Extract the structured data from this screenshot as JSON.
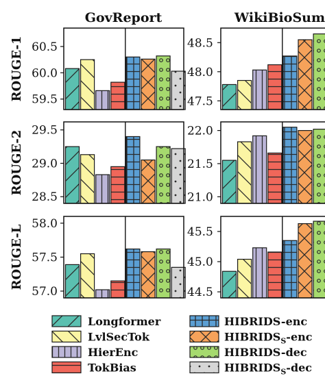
{
  "patterns": {
    "Longformer": {
      "fill": "#5bc0b0",
      "pattern": "fslash"
    },
    "LvlSecTok": {
      "fill": "#fbf5a4",
      "pattern": "bslash"
    },
    "HierEnc": {
      "fill": "#bcb6d8",
      "pattern": "vlines"
    },
    "TokBias": {
      "fill": "#f0675a",
      "pattern": "hlines"
    },
    "HIBRIDS-enc": {
      "fill": "#5b9fd4",
      "pattern": "grid"
    },
    "HIBRIDS_S-enc": {
      "fill": "#f6a25a",
      "pattern": "cross"
    },
    "HIBRIDS-dec": {
      "fill": "#a6da6e",
      "pattern": "circles"
    },
    "HIBRIDS_S-dec": {
      "fill": "#d6d6d6",
      "pattern": "dots"
    }
  },
  "legend": [
    {
      "series": "Longformer",
      "main": "Longformer",
      "sub": "",
      "rest": ""
    },
    {
      "series": "LvlSecTok",
      "main": "LvlSecTok",
      "sub": "",
      "rest": ""
    },
    {
      "series": "HierEnc",
      "main": "HierEnc",
      "sub": "",
      "rest": ""
    },
    {
      "series": "TokBias",
      "main": "TokBias",
      "sub": "",
      "rest": ""
    },
    {
      "series": "HIBRIDS-enc",
      "main": "HIBRIDS-enc",
      "sub": "",
      "rest": ""
    },
    {
      "series": "HIBRIDS_S-enc",
      "main": "HIBRIDS",
      "sub": "S",
      "rest": "-enc"
    },
    {
      "series": "HIBRIDS-dec",
      "main": "HIBRIDS-dec",
      "sub": "",
      "rest": ""
    },
    {
      "series": "HIBRIDS_S-dec",
      "main": "HIBRIDS",
      "sub": "S",
      "rest": "-dec"
    }
  ],
  "chart_data": {
    "type": "bar",
    "columns": [
      "GovReport",
      "WikiBioSum"
    ],
    "rows": [
      "ROUGE-1",
      "ROUGE-2",
      "ROUGE-L"
    ],
    "series_names": [
      "Longformer",
      "LvlSecTok",
      "HierEnc",
      "TokBias",
      "HIBRIDS-enc",
      "HIBRIDS_S-enc",
      "HIBRIDS-dec",
      "HIBRIDS_S-dec"
    ],
    "panels": [
      {
        "row": "ROUGE-1",
        "column": "GovReport",
        "ylim": [
          59.3,
          60.85
        ],
        "yticks": [
          59.5,
          60.0,
          60.5
        ],
        "ytick_labels": [
          "59.5",
          "60.0",
          "60.5"
        ],
        "values": [
          60.08,
          60.25,
          59.66,
          59.82,
          60.3,
          60.26,
          60.32,
          60.03
        ]
      },
      {
        "row": "ROUGE-1",
        "column": "WikiBioSum",
        "ylim": [
          47.35,
          48.75
        ],
        "yticks": [
          47.5,
          48.0,
          48.5
        ],
        "ytick_labels": [
          "47.5",
          "48.0",
          "48.5"
        ],
        "values": [
          47.78,
          47.85,
          48.03,
          48.12,
          48.27,
          48.55,
          48.65
        ]
      },
      {
        "row": "ROUGE-2",
        "column": "GovReport",
        "ylim": [
          28.4,
          29.62
        ],
        "yticks": [
          28.5,
          29.0,
          29.5
        ],
        "ytick_labels": [
          "28.5",
          "29.0",
          "29.5"
        ],
        "values": [
          29.25,
          29.13,
          28.83,
          28.95,
          29.4,
          29.05,
          29.25,
          29.22
        ]
      },
      {
        "row": "ROUGE-2",
        "column": "WikiBioSum",
        "ylim": [
          20.9,
          22.13
        ],
        "yticks": [
          21.0,
          21.5,
          22.0
        ],
        "ytick_labels": [
          "21.0",
          "21.5",
          "22.0"
        ],
        "values": [
          21.55,
          21.83,
          21.92,
          21.66,
          22.05,
          22.0,
          22.02
        ]
      },
      {
        "row": "ROUGE-L",
        "column": "GovReport",
        "ylim": [
          56.9,
          58.1
        ],
        "yticks": [
          57.0,
          57.5,
          58.0
        ],
        "ytick_labels": [
          "57.0",
          "57.5",
          "58.0"
        ],
        "values": [
          57.39,
          57.55,
          57.02,
          57.15,
          57.62,
          57.58,
          57.62,
          57.35
        ]
      },
      {
        "row": "ROUGE-L",
        "column": "WikiBioSum",
        "ylim": [
          44.4,
          45.75
        ],
        "yticks": [
          44.5,
          45.0,
          45.5
        ],
        "ytick_labels": [
          "44.5",
          "45.0",
          "45.5"
        ],
        "values": [
          44.84,
          45.04,
          45.23,
          45.16,
          45.35,
          45.63,
          45.67
        ]
      }
    ]
  }
}
